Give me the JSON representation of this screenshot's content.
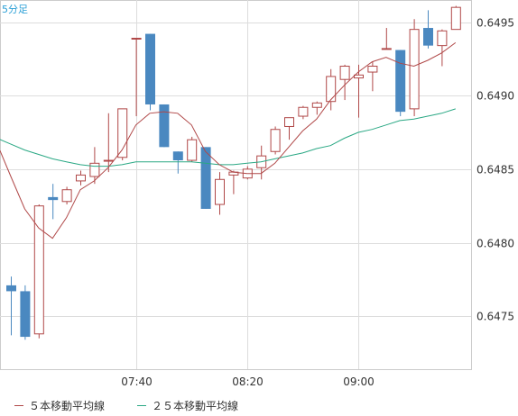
{
  "corner_label": "5分足",
  "colors": {
    "up_candle": "#b04848",
    "down_candle": "#4a88c0",
    "ma5": "#b04848",
    "ma25": "#2aa884",
    "grid": "#dddddd"
  },
  "legend": [
    {
      "label": "５本移動平均線",
      "color": "#b04848"
    },
    {
      "label": "２５本移動平均線",
      "color": "#2aa884"
    }
  ],
  "chart_data": {
    "type": "candlestick",
    "y_ticks": [
      "0.6475",
      "0.6480",
      "0.6485",
      "0.6490",
      "0.6495"
    ],
    "x_ticks": [
      "07:40",
      "08:20",
      "09:00"
    ],
    "ylim": [
      0.64714,
      0.64965
    ],
    "grid": true,
    "legend_placement": "bottom",
    "candles": [
      {
        "o": 0.64771,
        "h": 0.64777,
        "l": 0.64737,
        "c": 0.64767
      },
      {
        "o": 0.64767,
        "h": 0.64771,
        "l": 0.64734,
        "c": 0.64736
      },
      {
        "o": 0.64738,
        "h": 0.64826,
        "l": 0.64735,
        "c": 0.64825
      },
      {
        "o": 0.64831,
        "h": 0.6484,
        "l": 0.64816,
        "c": 0.64829
      },
      {
        "o": 0.64828,
        "h": 0.64838,
        "l": 0.64826,
        "c": 0.64836
      },
      {
        "o": 0.64842,
        "h": 0.64849,
        "l": 0.64839,
        "c": 0.64846
      },
      {
        "o": 0.64845,
        "h": 0.64865,
        "l": 0.6484,
        "c": 0.64854
      },
      {
        "o": 0.64856,
        "h": 0.64888,
        "l": 0.64848,
        "c": 0.64856
      },
      {
        "o": 0.64858,
        "h": 0.64891,
        "l": 0.64856,
        "c": 0.64891
      },
      {
        "o": 0.64939,
        "h": 0.64939,
        "l": 0.64886,
        "c": 0.64939
      },
      {
        "o": 0.64942,
        "h": 0.64942,
        "l": 0.6489,
        "c": 0.64894
      },
      {
        "o": 0.64894,
        "h": 0.64894,
        "l": 0.64865,
        "c": 0.64865
      },
      {
        "o": 0.64862,
        "h": 0.64862,
        "l": 0.64847,
        "c": 0.64856
      },
      {
        "o": 0.64856,
        "h": 0.64872,
        "l": 0.64855,
        "c": 0.6487
      },
      {
        "o": 0.64865,
        "h": 0.64865,
        "l": 0.64823,
        "c": 0.64823
      },
      {
        "o": 0.64826,
        "h": 0.64848,
        "l": 0.64819,
        "c": 0.64843
      },
      {
        "o": 0.64846,
        "h": 0.64849,
        "l": 0.64833,
        "c": 0.64848
      },
      {
        "o": 0.64844,
        "h": 0.64852,
        "l": 0.64843,
        "c": 0.6485
      },
      {
        "o": 0.64851,
        "h": 0.64866,
        "l": 0.64843,
        "c": 0.64859
      },
      {
        "o": 0.64862,
        "h": 0.64879,
        "l": 0.6486,
        "c": 0.64877
      },
      {
        "o": 0.64879,
        "h": 0.64885,
        "l": 0.6487,
        "c": 0.64885
      },
      {
        "o": 0.64886,
        "h": 0.64893,
        "l": 0.64884,
        "c": 0.64892
      },
      {
        "o": 0.64892,
        "h": 0.64896,
        "l": 0.64887,
        "c": 0.64895
      },
      {
        "o": 0.64896,
        "h": 0.64918,
        "l": 0.6489,
        "c": 0.64913
      },
      {
        "o": 0.64911,
        "h": 0.64921,
        "l": 0.64897,
        "c": 0.6492
      },
      {
        "o": 0.64912,
        "h": 0.64921,
        "l": 0.64885,
        "c": 0.64914
      },
      {
        "o": 0.64916,
        "h": 0.64923,
        "l": 0.64903,
        "c": 0.6492
      },
      {
        "o": 0.64932,
        "h": 0.64946,
        "l": 0.64932,
        "c": 0.64932
      },
      {
        "o": 0.64931,
        "h": 0.64931,
        "l": 0.64886,
        "c": 0.64889
      },
      {
        "o": 0.64891,
        "h": 0.64952,
        "l": 0.64886,
        "c": 0.64945
      },
      {
        "o": 0.64946,
        "h": 0.64958,
        "l": 0.64932,
        "c": 0.64934
      },
      {
        "o": 0.64934,
        "h": 0.64945,
        "l": 0.6492,
        "c": 0.64944
      },
      {
        "o": 0.64945,
        "h": 0.64961,
        "l": 0.64945,
        "c": 0.6496
      }
    ],
    "ma5": [
      0.64845,
      0.64823,
      0.6481,
      0.64803,
      0.64817,
      0.64836,
      0.64842,
      0.64851,
      0.64863,
      0.6488,
      0.64888,
      0.64889,
      0.64888,
      0.6488,
      0.64862,
      0.64853,
      0.64848,
      0.64847,
      0.64847,
      0.64854,
      0.64865,
      0.64876,
      0.64884,
      0.64897,
      0.64907,
      0.64916,
      0.64923,
      0.64926,
      0.64922,
      0.6492,
      0.64924,
      0.64929,
      0.64936
    ],
    "ma25": [
      0.64867,
      0.64863,
      0.6486,
      0.64857,
      0.64855,
      0.64853,
      0.64852,
      0.64852,
      0.64853,
      0.64855,
      0.64855,
      0.64855,
      0.64855,
      0.64855,
      0.64854,
      0.64853,
      0.64853,
      0.64854,
      0.64855,
      0.64857,
      0.64859,
      0.64861,
      0.64864,
      0.64866,
      0.64871,
      0.64875,
      0.64877,
      0.6488,
      0.64883,
      0.64884,
      0.64886,
      0.64888,
      0.64891
    ]
  }
}
